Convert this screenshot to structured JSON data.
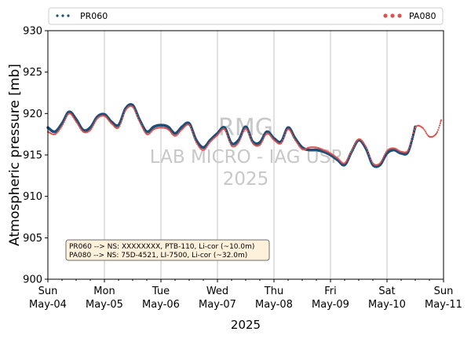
{
  "chart_data": {
    "type": "line",
    "xlabel": "2025",
    "ylabel": "Atmospheric pressure [mb]",
    "ylim": [
      900,
      930
    ],
    "yticks": [
      900,
      905,
      910,
      915,
      920,
      925,
      930
    ],
    "xlim": [
      "2025-05-04",
      "2025-05-11"
    ],
    "xticks": [
      {
        "day": "Sun",
        "date": "May-04"
      },
      {
        "day": "Mon",
        "date": "May-05"
      },
      {
        "day": "Tue",
        "date": "May-06"
      },
      {
        "day": "Wed",
        "date": "May-07"
      },
      {
        "day": "Thu",
        "date": "May-08"
      },
      {
        "day": "Fri",
        "date": "May-09"
      },
      {
        "day": "Sat",
        "date": "May-10"
      },
      {
        "day": "Sun",
        "date": "May-11"
      }
    ],
    "grid": "vertical",
    "legend": [
      "upper-left",
      "upper-right"
    ],
    "series": [
      {
        "name": "PR060",
        "color": "#1f4e79",
        "x": [
          "2025-05-04 00:00",
          "2025-05-04 03:00",
          "2025-05-04 06:00",
          "2025-05-04 09:00",
          "2025-05-04 12:00",
          "2025-05-04 15:00",
          "2025-05-04 18:00",
          "2025-05-04 21:00",
          "2025-05-05 00:00",
          "2025-05-05 03:00",
          "2025-05-05 06:00",
          "2025-05-05 09:00",
          "2025-05-05 12:00",
          "2025-05-05 15:00",
          "2025-05-05 18:00",
          "2025-05-05 21:00",
          "2025-05-06 00:00",
          "2025-05-06 03:00",
          "2025-05-06 06:00",
          "2025-05-06 09:00",
          "2025-05-06 12:00",
          "2025-05-06 15:00",
          "2025-05-06 18:00",
          "2025-05-06 21:00",
          "2025-05-07 00:00",
          "2025-05-07 03:00",
          "2025-05-07 06:00",
          "2025-05-07 09:00",
          "2025-05-07 12:00",
          "2025-05-07 15:00",
          "2025-05-07 18:00",
          "2025-05-07 21:00",
          "2025-05-08 00:00",
          "2025-05-08 03:00",
          "2025-05-08 06:00",
          "2025-05-08 09:00",
          "2025-05-08 12:00",
          "2025-05-08 15:00",
          "2025-05-08 18:00",
          "2025-05-08 21:00",
          "2025-05-09 00:00",
          "2025-05-09 03:00",
          "2025-05-09 06:00",
          "2025-05-09 09:00",
          "2025-05-09 12:00",
          "2025-05-09 15:00",
          "2025-05-09 18:00",
          "2025-05-09 21:00",
          "2025-05-10 00:00",
          "2025-05-10 03:00",
          "2025-05-10 06:00",
          "2025-05-10 09:00",
          "2025-05-10 12:00"
        ],
        "y": [
          918.3,
          917.8,
          918.8,
          920.2,
          919.3,
          918.0,
          918.3,
          919.6,
          919.9,
          919.0,
          918.6,
          920.6,
          921.0,
          919.2,
          917.8,
          918.4,
          918.6,
          918.4,
          917.6,
          918.4,
          918.8,
          916.8,
          915.9,
          916.8,
          917.6,
          918.3,
          916.4,
          916.8,
          918.4,
          916.6,
          916.5,
          917.8,
          917.0,
          916.6,
          918.3,
          917.0,
          915.9,
          915.6,
          915.6,
          915.4,
          915.0,
          914.4,
          913.8,
          915.4,
          916.8,
          915.8,
          913.8,
          913.8,
          915.2,
          915.6,
          915.2,
          915.4,
          918.4
        ]
      },
      {
        "name": "PA080",
        "color": "#d9534f",
        "x": [
          "2025-05-04 00:00",
          "2025-05-04 03:00",
          "2025-05-04 06:00",
          "2025-05-04 09:00",
          "2025-05-04 12:00",
          "2025-05-04 15:00",
          "2025-05-04 18:00",
          "2025-05-04 21:00",
          "2025-05-05 00:00",
          "2025-05-05 03:00",
          "2025-05-05 06:00",
          "2025-05-05 09:00",
          "2025-05-05 12:00",
          "2025-05-05 15:00",
          "2025-05-05 18:00",
          "2025-05-05 21:00",
          "2025-05-06 00:00",
          "2025-05-06 03:00",
          "2025-05-06 06:00",
          "2025-05-06 09:00",
          "2025-05-06 12:00",
          "2025-05-06 15:00",
          "2025-05-06 18:00",
          "2025-05-06 21:00",
          "2025-05-07 00:00",
          "2025-05-07 03:00",
          "2025-05-07 06:00",
          "2025-05-07 09:00",
          "2025-05-07 12:00",
          "2025-05-07 15:00",
          "2025-05-07 18:00",
          "2025-05-07 21:00",
          "2025-05-08 00:00",
          "2025-05-08 03:00",
          "2025-05-08 06:00",
          "2025-05-08 09:00",
          "2025-05-08 12:00",
          "2025-05-08 15:00",
          "2025-05-08 18:00",
          "2025-05-08 21:00",
          "2025-05-09 00:00",
          "2025-05-09 03:00",
          "2025-05-09 06:00",
          "2025-05-09 09:00",
          "2025-05-09 12:00",
          "2025-05-09 15:00",
          "2025-05-09 18:00",
          "2025-05-09 21:00",
          "2025-05-10 00:00",
          "2025-05-10 03:00",
          "2025-05-10 06:00",
          "2025-05-10 09:00",
          "2025-05-10 12:00",
          "2025-05-10 15:00",
          "2025-05-10 18:00",
          "2025-05-10 21:00",
          "2025-05-10 23:00"
        ],
        "y": [
          917.8,
          917.5,
          918.5,
          920.0,
          919.0,
          917.8,
          918.0,
          919.4,
          919.7,
          918.8,
          918.3,
          920.4,
          920.8,
          919.0,
          917.5,
          918.1,
          918.3,
          918.1,
          917.3,
          918.1,
          918.6,
          916.5,
          915.6,
          916.6,
          917.4,
          918.1,
          916.1,
          916.5,
          918.2,
          916.4,
          916.2,
          917.6,
          916.8,
          916.4,
          918.1,
          916.8,
          915.7,
          915.9,
          915.9,
          915.6,
          915.2,
          914.6,
          914.0,
          915.5,
          916.9,
          916.0,
          914.0,
          914.0,
          915.5,
          915.8,
          915.4,
          915.6,
          918.3,
          918.3,
          917.2,
          917.6,
          919.2
        ]
      }
    ],
    "annotation": [
      "PR060 --> NS: XXXXXXXX, PTB-110, Li-cor (~10.0m)",
      "PA080 --> NS: 75D-4521, LI-7500, Li-cor (~32.0m)"
    ],
    "watermark": [
      "RMG",
      "LAB MICRO - IAG USP",
      "2025"
    ]
  }
}
